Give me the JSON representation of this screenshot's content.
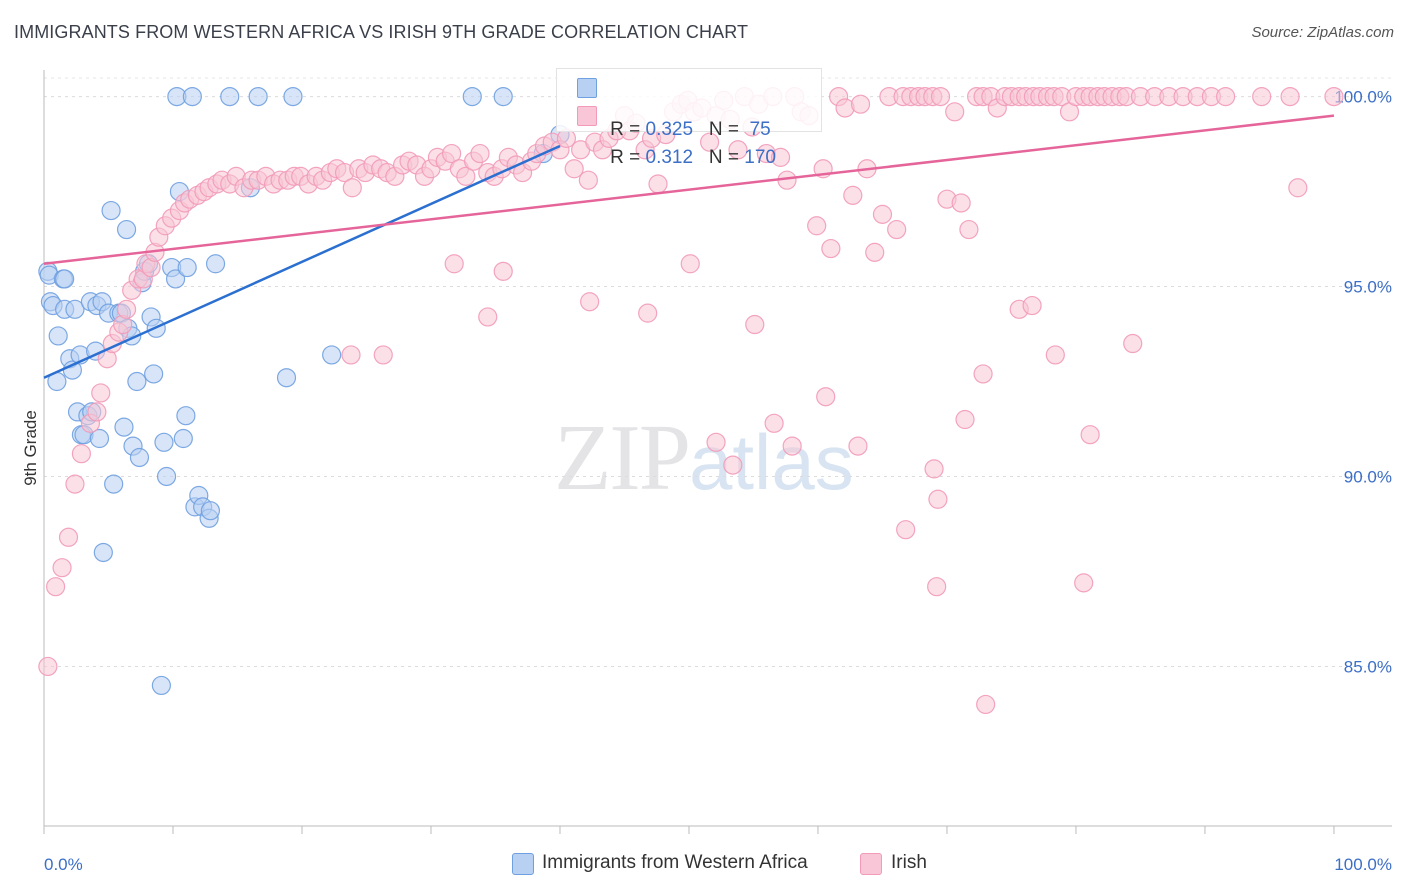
{
  "title": "IMMIGRANTS FROM WESTERN AFRICA VS IRISH 9TH GRADE CORRELATION CHART",
  "source": "Source: ZipAtlas.com",
  "watermark": {
    "zip": "ZIP",
    "atlas": "atlas"
  },
  "legend": {
    "rows": [
      {
        "r_label": "R = ",
        "r_value": "0.325",
        "n_label": "N = ",
        "n_value": " 75",
        "color": "#a8c8f0"
      },
      {
        "r_label": "R = ",
        "r_value": "0.312",
        "n_label": "N = ",
        "n_value": "170",
        "color": "#f6b8cc"
      }
    ]
  },
  "bottom_legend": [
    "Immigrants from Western Africa",
    "Irish"
  ],
  "chart_data": {
    "type": "scatter",
    "title": "IMMIGRANTS FROM WESTERN AFRICA VS IRISH 9TH GRADE CORRELATION CHART",
    "xlabel": "",
    "ylabel": "9th Grade",
    "xlim": [
      0,
      104.5
    ],
    "ylim": [
      80.8,
      100.7
    ],
    "x_ticks": [
      "0.0%",
      "100.0%"
    ],
    "y_ticks": [
      {
        "value": 85,
        "label": "85.0%"
      },
      {
        "value": 90,
        "label": "90.0%"
      },
      {
        "value": 95,
        "label": "95.0%"
      },
      {
        "value": 100,
        "label": "100.0%"
      }
    ],
    "grid": true,
    "series": [
      {
        "name": "Immigrants from Western Africa",
        "color": "#6fa0e0",
        "fill": "#b8d0f2",
        "trend": {
          "x": [
            0,
            40
          ],
          "y": [
            92.6,
            98.7
          ],
          "color": "#2b6fd0"
        },
        "points": [
          [
            0.3,
            95.4
          ],
          [
            0.4,
            95.3
          ],
          [
            0.5,
            94.6
          ],
          [
            0.7,
            94.5
          ],
          [
            1,
            92.5
          ],
          [
            1.1,
            93.7
          ],
          [
            1.5,
            95.2
          ],
          [
            1.6,
            95.2
          ],
          [
            1.6,
            94.4
          ],
          [
            2,
            93.1
          ],
          [
            2.2,
            92.8
          ],
          [
            2.4,
            94.4
          ],
          [
            2.6,
            91.7
          ],
          [
            2.8,
            93.2
          ],
          [
            2.9,
            91.1
          ],
          [
            3.1,
            91.1
          ],
          [
            3.4,
            91.6
          ],
          [
            3.6,
            94.6
          ],
          [
            3.7,
            91.7
          ],
          [
            4,
            93.3
          ],
          [
            4.1,
            94.5
          ],
          [
            4.3,
            91.0
          ],
          [
            4.5,
            94.6
          ],
          [
            4.6,
            88.0
          ],
          [
            5.0,
            94.3
          ],
          [
            5.2,
            97.0
          ],
          [
            5.4,
            89.8
          ],
          [
            5.8,
            94.3
          ],
          [
            6.0,
            94.3
          ],
          [
            6.2,
            91.3
          ],
          [
            6.4,
            96.5
          ],
          [
            6.5,
            93.9
          ],
          [
            6.8,
            93.7
          ],
          [
            6.9,
            90.8
          ],
          [
            7.2,
            92.5
          ],
          [
            7.4,
            90.5
          ],
          [
            7.6,
            95.1
          ],
          [
            7.8,
            95.4
          ],
          [
            8.1,
            95.6
          ],
          [
            8.3,
            94.2
          ],
          [
            8.5,
            92.7
          ],
          [
            8.7,
            93.9
          ],
          [
            9.1,
            84.5
          ],
          [
            9.3,
            90.9
          ],
          [
            9.5,
            90.0
          ],
          [
            9.9,
            95.5
          ],
          [
            10.2,
            95.2
          ],
          [
            10.3,
            100
          ],
          [
            10.5,
            97.5
          ],
          [
            10.8,
            91.0
          ],
          [
            11.1,
            95.5
          ],
          [
            11.0,
            91.6
          ],
          [
            11.5,
            100
          ],
          [
            11.7,
            89.2
          ],
          [
            12.0,
            89.5
          ],
          [
            12.3,
            89.2
          ],
          [
            12.8,
            88.9
          ],
          [
            12.9,
            89.1
          ],
          [
            13.3,
            95.6
          ],
          [
            14.4,
            100
          ],
          [
            16.0,
            97.6
          ],
          [
            16.6,
            100
          ],
          [
            18.8,
            92.6
          ],
          [
            19.3,
            100
          ],
          [
            22.3,
            93.2
          ],
          [
            33.2,
            100
          ],
          [
            35.6,
            100
          ],
          [
            38.7,
            98.5
          ],
          [
            40.0,
            99.0
          ]
        ]
      },
      {
        "name": "Irish",
        "color": "#f29ab8",
        "fill": "#f8c6d6",
        "trend": {
          "x": [
            0,
            100
          ],
          "y": [
            95.6,
            99.5
          ],
          "color": "#e5659a"
        },
        "points": [
          [
            0.3,
            85.0
          ],
          [
            0.9,
            87.1
          ],
          [
            1.4,
            87.6
          ],
          [
            1.9,
            88.4
          ],
          [
            2.4,
            89.8
          ],
          [
            2.9,
            90.6
          ],
          [
            3.6,
            91.4
          ],
          [
            4.1,
            91.7
          ],
          [
            4.4,
            92.2
          ],
          [
            4.9,
            93.1
          ],
          [
            5.3,
            93.5
          ],
          [
            5.8,
            93.8
          ],
          [
            6.1,
            94.0
          ],
          [
            6.4,
            94.4
          ],
          [
            6.8,
            94.9
          ],
          [
            7.3,
            95.2
          ],
          [
            7.7,
            95.2
          ],
          [
            7.9,
            95.6
          ],
          [
            8.3,
            95.5
          ],
          [
            8.6,
            95.9
          ],
          [
            8.9,
            96.3
          ],
          [
            9.4,
            96.6
          ],
          [
            9.9,
            96.8
          ],
          [
            10.5,
            97.0
          ],
          [
            10.9,
            97.2
          ],
          [
            11.3,
            97.3
          ],
          [
            11.9,
            97.4
          ],
          [
            12.4,
            97.5
          ],
          [
            12.8,
            97.6
          ],
          [
            13.4,
            97.7
          ],
          [
            13.8,
            97.8
          ],
          [
            14.4,
            97.7
          ],
          [
            14.9,
            97.9
          ],
          [
            15.5,
            97.6
          ],
          [
            16.1,
            97.8
          ],
          [
            16.6,
            97.8
          ],
          [
            17.2,
            97.9
          ],
          [
            17.8,
            97.7
          ],
          [
            18.3,
            97.8
          ],
          [
            18.9,
            97.8
          ],
          [
            19.4,
            97.9
          ],
          [
            19.9,
            97.9
          ],
          [
            20.5,
            97.7
          ],
          [
            21.1,
            97.9
          ],
          [
            21.6,
            97.8
          ],
          [
            22.2,
            98.0
          ],
          [
            22.7,
            98.1
          ],
          [
            23.3,
            98.0
          ],
          [
            23.9,
            97.6
          ],
          [
            24.4,
            98.1
          ],
          [
            24.9,
            98.0
          ],
          [
            25.5,
            98.2
          ],
          [
            26.1,
            98.1
          ],
          [
            26.6,
            98.0
          ],
          [
            27.2,
            97.9
          ],
          [
            27.8,
            98.2
          ],
          [
            28.3,
            98.3
          ],
          [
            28.9,
            98.2
          ],
          [
            29.5,
            97.9
          ],
          [
            30.0,
            98.1
          ],
          [
            30.5,
            98.4
          ],
          [
            31.1,
            98.3
          ],
          [
            31.6,
            98.5
          ],
          [
            32.2,
            98.1
          ],
          [
            32.7,
            97.9
          ],
          [
            33.3,
            98.3
          ],
          [
            33.8,
            98.5
          ],
          [
            34.4,
            98.0
          ],
          [
            34.9,
            97.9
          ],
          [
            35.5,
            98.1
          ],
          [
            36.0,
            98.4
          ],
          [
            36.6,
            98.2
          ],
          [
            37.1,
            98.0
          ],
          [
            37.8,
            98.3
          ],
          [
            38.2,
            98.5
          ],
          [
            38.8,
            98.7
          ],
          [
            39.4,
            98.8
          ],
          [
            40.0,
            98.6
          ],
          [
            40.5,
            98.9
          ],
          [
            41.1,
            98.1
          ],
          [
            41.6,
            98.6
          ],
          [
            42.2,
            97.8
          ],
          [
            42.7,
            98.8
          ],
          [
            43.3,
            98.6
          ],
          [
            43.8,
            98.9
          ],
          [
            44.4,
            99.1
          ],
          [
            45.0,
            99.5
          ],
          [
            45.4,
            99.1
          ],
          [
            45.9,
            99.3
          ],
          [
            46.6,
            98.6
          ],
          [
            47.1,
            98.9
          ],
          [
            47.6,
            97.7
          ],
          [
            48.2,
            99.0
          ],
          [
            48.8,
            99.6
          ],
          [
            49.4,
            99.8
          ],
          [
            49.9,
            99.9
          ],
          [
            50.4,
            99.6
          ],
          [
            51.0,
            99.7
          ],
          [
            51.6,
            98.8
          ],
          [
            52.1,
            99.5
          ],
          [
            52.7,
            99.9
          ],
          [
            53.2,
            99.4
          ],
          [
            53.8,
            98.6
          ],
          [
            54.3,
            100
          ],
          [
            54.9,
            99.2
          ],
          [
            55.4,
            99.8
          ],
          [
            56.0,
            98.5
          ],
          [
            56.5,
            100
          ],
          [
            57.1,
            98.4
          ],
          [
            57.6,
            97.8
          ],
          [
            58.2,
            100
          ],
          [
            58.7,
            99.6
          ],
          [
            59.3,
            99.5
          ],
          [
            59.9,
            96.6
          ],
          [
            60.4,
            98.1
          ],
          [
            61.0,
            96.0
          ],
          [
            61.6,
            100
          ],
          [
            62.1,
            99.7
          ],
          [
            62.7,
            97.4
          ],
          [
            63.3,
            99.8
          ],
          [
            63.8,
            98.1
          ],
          [
            64.4,
            95.9
          ],
          [
            65.0,
            96.9
          ],
          [
            65.5,
            100
          ],
          [
            66.1,
            96.5
          ],
          [
            66.6,
            100
          ],
          [
            67.2,
            100
          ],
          [
            67.8,
            100
          ],
          [
            68.3,
            100
          ],
          [
            68.9,
            100
          ],
          [
            69.5,
            100
          ],
          [
            70.0,
            97.3
          ],
          [
            70.6,
            99.6
          ],
          [
            71.1,
            97.2
          ],
          [
            71.7,
            96.5
          ],
          [
            72.3,
            100
          ],
          [
            72.8,
            100
          ],
          [
            73.4,
            100
          ],
          [
            73.9,
            99.7
          ],
          [
            74.5,
            100
          ],
          [
            75.0,
            100
          ],
          [
            75.6,
            100
          ],
          [
            76.1,
            100
          ],
          [
            76.7,
            100
          ],
          [
            77.2,
            100
          ],
          [
            77.8,
            100
          ],
          [
            78.3,
            100
          ],
          [
            78.9,
            100
          ],
          [
            79.5,
            99.6
          ],
          [
            80.0,
            100
          ],
          [
            80.6,
            100
          ],
          [
            81.1,
            100
          ],
          [
            81.7,
            100
          ],
          [
            82.2,
            100
          ],
          [
            82.8,
            100
          ],
          [
            83.4,
            100
          ],
          [
            83.9,
            100
          ],
          [
            85.0,
            100
          ],
          [
            86.1,
            100
          ],
          [
            87.2,
            100
          ],
          [
            88.3,
            100
          ],
          [
            89.4,
            100
          ],
          [
            90.5,
            100
          ],
          [
            91.6,
            100
          ],
          [
            94.4,
            100
          ],
          [
            96.6,
            100
          ],
          [
            97.2,
            97.6
          ],
          [
            100,
            100
          ],
          [
            23.8,
            93.2
          ],
          [
            26.3,
            93.2
          ],
          [
            31.8,
            95.6
          ],
          [
            35.6,
            95.4
          ],
          [
            34.4,
            94.2
          ],
          [
            42.3,
            94.6
          ],
          [
            46.8,
            94.3
          ],
          [
            50.1,
            95.6
          ],
          [
            55.1,
            94.0
          ],
          [
            56.6,
            91.4
          ],
          [
            53.4,
            90.3
          ],
          [
            58.0,
            90.8
          ],
          [
            60.6,
            92.1
          ],
          [
            63.1,
            90.8
          ],
          [
            66.8,
            88.6
          ],
          [
            69.3,
            89.4
          ],
          [
            71.4,
            91.5
          ],
          [
            72.8,
            92.7
          ],
          [
            75.6,
            94.4
          ],
          [
            76.6,
            94.5
          ],
          [
            78.4,
            93.2
          ],
          [
            81.1,
            91.1
          ],
          [
            84.4,
            93.5
          ],
          [
            80.6,
            87.2
          ],
          [
            69.2,
            87.1
          ],
          [
            69.0,
            90.2
          ],
          [
            52.1,
            90.9
          ],
          [
            73.0,
            84.0
          ]
        ]
      }
    ]
  }
}
